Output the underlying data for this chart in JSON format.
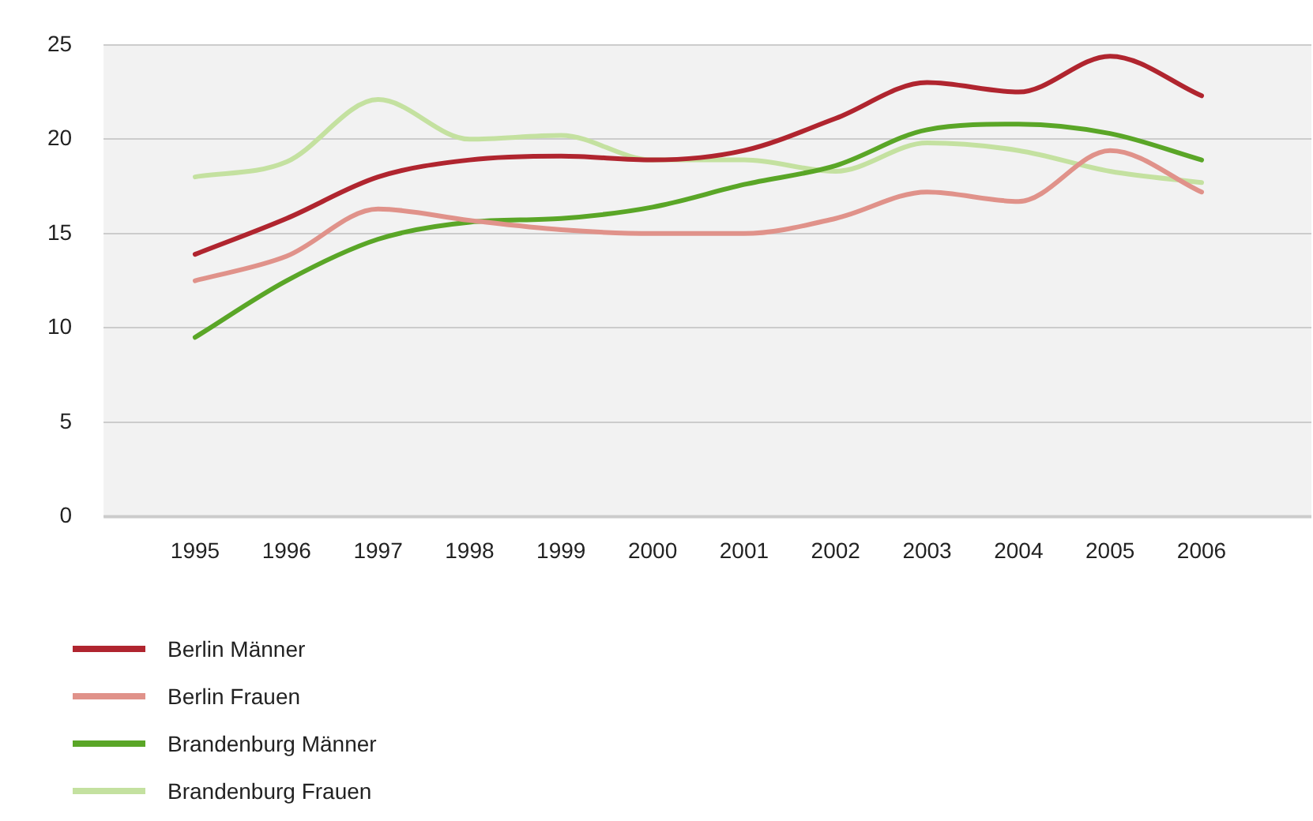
{
  "chart_data": {
    "type": "line",
    "x": [
      1995,
      1996,
      1997,
      1998,
      1999,
      2000,
      2001,
      2002,
      2003,
      2004,
      2005,
      2006
    ],
    "xlim": [
      1994,
      2007.2
    ],
    "xticks": [
      1995,
      1996,
      1997,
      1998,
      1999,
      2000,
      2001,
      2002,
      2003,
      2004,
      2005,
      2006
    ],
    "ylim": [
      0,
      25
    ],
    "yticks": [
      0,
      5,
      10,
      15,
      20,
      25
    ],
    "grid": "y",
    "legend": "bottom left",
    "series": [
      {
        "name": "Berlin Männer",
        "color": "#b0252f",
        "values": [
          13.9,
          15.8,
          18.0,
          18.9,
          19.1,
          18.9,
          19.4,
          21.1,
          23.0,
          22.5,
          24.4,
          22.3
        ]
      },
      {
        "name": "Berlin Frauen",
        "color": "#e0928a",
        "values": [
          12.5,
          13.8,
          16.3,
          15.7,
          15.2,
          15.0,
          15.0,
          15.8,
          17.2,
          16.7,
          19.4,
          17.2
        ]
      },
      {
        "name": "Brandenburg Männer",
        "color": "#5aa627",
        "values": [
          9.5,
          12.5,
          14.7,
          15.6,
          15.8,
          16.4,
          17.6,
          18.6,
          20.5,
          20.8,
          20.3,
          18.9
        ]
      },
      {
        "name": "Brandenburg Frauen",
        "color": "#c4e1a0",
        "values": [
          18.0,
          18.8,
          22.1,
          20.0,
          20.2,
          18.9,
          18.9,
          18.3,
          19.8,
          19.4,
          18.3,
          17.7
        ]
      }
    ]
  }
}
